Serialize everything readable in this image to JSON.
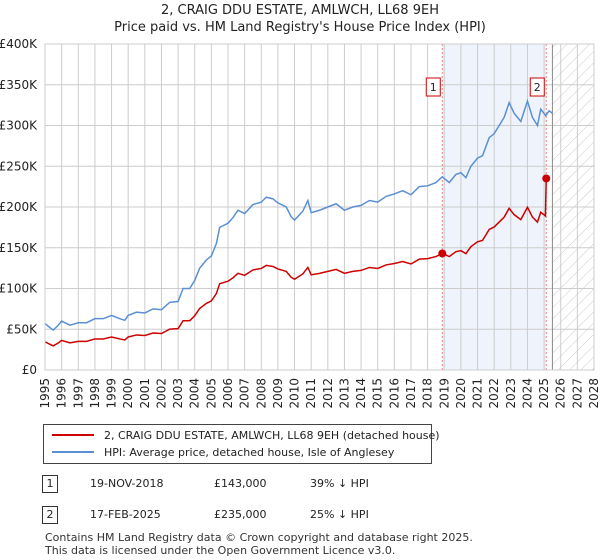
{
  "title": "2, CRAIG DDU ESTATE, AMLWCH, LL68 9EH",
  "subtitle": "Price paid vs. HM Land Registry's House Price Index (HPI)",
  "chart_data": {
    "type": "line",
    "title": "2, CRAIG DDU ESTATE, AMLWCH, LL68 9EH",
    "subtitle": "Price paid vs. HM Land Registry's House Price Index (HPI)",
    "xlim": [
      1995,
      2028
    ],
    "ylim": [
      0,
      400000
    ],
    "x_ticks": [
      "1995",
      "1996",
      "1997",
      "1998",
      "1999",
      "2000",
      "2001",
      "2002",
      "2003",
      "2004",
      "2005",
      "2006",
      "2007",
      "2008",
      "2009",
      "2010",
      "2011",
      "2012",
      "2013",
      "2014",
      "2015",
      "2016",
      "2017",
      "2018",
      "2019",
      "2020",
      "2021",
      "2022",
      "2023",
      "2024",
      "2025",
      "2026",
      "2027",
      "2028"
    ],
    "y_ticks": [
      {
        "v": 0,
        "l": "£0"
      },
      {
        "v": 50000,
        "l": "£50K"
      },
      {
        "v": 100000,
        "l": "£100K"
      },
      {
        "v": 150000,
        "l": "£150K"
      },
      {
        "v": 200000,
        "l": "£200K"
      },
      {
        "v": 250000,
        "l": "£250K"
      },
      {
        "v": 300000,
        "l": "£300K"
      },
      {
        "v": 350000,
        "l": "£350K"
      },
      {
        "v": 400000,
        "l": "£400K"
      }
    ],
    "grid": true,
    "shaded_range": [
      2018.88,
      2025.13
    ],
    "forecast_hatch_from": 2025.5,
    "series": [
      {
        "name": "2, CRAIG DDU ESTATE, AMLWCH, LL68 9EH (detached house)",
        "color": "#cc0000",
        "points": [
          [
            1995,
            34.5
          ],
          [
            1995.3,
            31.5
          ],
          [
            1995.5,
            29.6
          ],
          [
            1995.8,
            33.3
          ],
          [
            1996,
            36.3
          ],
          [
            1996.5,
            33.3
          ],
          [
            1997,
            35.1
          ],
          [
            1997.5,
            35.1
          ],
          [
            1998,
            38.1
          ],
          [
            1998.5,
            38.1
          ],
          [
            1999,
            40.5
          ],
          [
            1999.5,
            38.1
          ],
          [
            1999.8,
            36.9
          ],
          [
            2000,
            40.5
          ],
          [
            2000.5,
            43
          ],
          [
            2001,
            42.4
          ],
          [
            2001.5,
            45.4
          ],
          [
            2002,
            44.8
          ],
          [
            2002.5,
            50.2
          ],
          [
            2003,
            50.8
          ],
          [
            2003.3,
            60.5
          ],
          [
            2003.7,
            60.5
          ],
          [
            2004,
            66.6
          ],
          [
            2004.3,
            75.6
          ],
          [
            2004.7,
            81.7
          ],
          [
            2005,
            84.7
          ],
          [
            2005.3,
            93.8
          ],
          [
            2005.5,
            105.9
          ],
          [
            2006,
            108.9
          ],
          [
            2006.3,
            113.1
          ],
          [
            2006.6,
            118.6
          ],
          [
            2007,
            116.2
          ],
          [
            2007.5,
            122.8
          ],
          [
            2008,
            124.6
          ],
          [
            2008.3,
            128.3
          ],
          [
            2008.7,
            127
          ],
          [
            2009,
            124
          ],
          [
            2009.5,
            121
          ],
          [
            2009.8,
            113.7
          ],
          [
            2010,
            111.3
          ],
          [
            2010.5,
            118
          ],
          [
            2010.8,
            125.8
          ],
          [
            2011,
            116.8
          ],
          [
            2011.5,
            118.6
          ],
          [
            2012,
            121
          ],
          [
            2012.5,
            123.4
          ],
          [
            2013,
            118.6
          ],
          [
            2013.5,
            121
          ],
          [
            2014,
            122.2
          ],
          [
            2014.5,
            125.8
          ],
          [
            2015,
            124.6
          ],
          [
            2015.5,
            128.9
          ],
          [
            2016,
            130.7
          ],
          [
            2016.5,
            133.1
          ],
          [
            2017,
            130.1
          ],
          [
            2017.5,
            136.1
          ],
          [
            2018,
            136.7
          ],
          [
            2018.5,
            139.2
          ],
          [
            2018.88,
            143
          ],
          [
            2019.3,
            139.2
          ],
          [
            2019.7,
            145.2
          ],
          [
            2020,
            146.4
          ],
          [
            2020.3,
            142.8
          ],
          [
            2020.6,
            151.3
          ],
          [
            2021,
            157.3
          ],
          [
            2021.3,
            159.1
          ],
          [
            2021.7,
            172.4
          ],
          [
            2022,
            175.5
          ],
          [
            2022.3,
            181.5
          ],
          [
            2022.6,
            187.6
          ],
          [
            2022.9,
            198.4
          ],
          [
            2023.2,
            190.6
          ],
          [
            2023.6,
            184.5
          ],
          [
            2024,
            199.7
          ],
          [
            2024.3,
            187.6
          ],
          [
            2024.6,
            181.5
          ],
          [
            2024.8,
            193.6
          ],
          [
            2025.08,
            189
          ],
          [
            2025.13,
            235
          ]
        ]
      },
      {
        "name": "HPI: Average price, detached house, Isle of Anglesey",
        "color": "#5b8fd4",
        "points": [
          [
            1995,
            57
          ],
          [
            1995.3,
            52
          ],
          [
            1995.5,
            49
          ],
          [
            1995.8,
            55
          ],
          [
            1996,
            60
          ],
          [
            1996.5,
            55
          ],
          [
            1997,
            58
          ],
          [
            1997.5,
            58
          ],
          [
            1998,
            63
          ],
          [
            1998.5,
            63
          ],
          [
            1999,
            67
          ],
          [
            1999.5,
            63
          ],
          [
            1999.8,
            61
          ],
          [
            2000,
            67
          ],
          [
            2000.5,
            71
          ],
          [
            2001,
            70
          ],
          [
            2001.5,
            75
          ],
          [
            2002,
            74
          ],
          [
            2002.5,
            83
          ],
          [
            2003,
            84
          ],
          [
            2003.3,
            100
          ],
          [
            2003.7,
            100
          ],
          [
            2004,
            110
          ],
          [
            2004.3,
            125
          ],
          [
            2004.7,
            135
          ],
          [
            2005,
            140
          ],
          [
            2005.3,
            155
          ],
          [
            2005.5,
            175
          ],
          [
            2006,
            180
          ],
          [
            2006.3,
            187
          ],
          [
            2006.6,
            196
          ],
          [
            2007,
            192
          ],
          [
            2007.5,
            203
          ],
          [
            2008,
            206
          ],
          [
            2008.3,
            212
          ],
          [
            2008.7,
            210
          ],
          [
            2009,
            205
          ],
          [
            2009.5,
            200
          ],
          [
            2009.8,
            188
          ],
          [
            2010,
            184
          ],
          [
            2010.5,
            195
          ],
          [
            2010.8,
            208
          ],
          [
            2011,
            193
          ],
          [
            2011.5,
            196
          ],
          [
            2012,
            200
          ],
          [
            2012.5,
            204
          ],
          [
            2013,
            196
          ],
          [
            2013.5,
            200
          ],
          [
            2014,
            202
          ],
          [
            2014.5,
            208
          ],
          [
            2015,
            206
          ],
          [
            2015.5,
            213
          ],
          [
            2016,
            216
          ],
          [
            2016.5,
            220
          ],
          [
            2017,
            215
          ],
          [
            2017.5,
            225
          ],
          [
            2018,
            226
          ],
          [
            2018.5,
            230
          ],
          [
            2018.88,
            237
          ],
          [
            2019.3,
            230
          ],
          [
            2019.7,
            240
          ],
          [
            2020,
            242
          ],
          [
            2020.3,
            236
          ],
          [
            2020.6,
            250
          ],
          [
            2021,
            260
          ],
          [
            2021.3,
            263
          ],
          [
            2021.7,
            285
          ],
          [
            2022,
            290
          ],
          [
            2022.3,
            300
          ],
          [
            2022.6,
            310
          ],
          [
            2022.9,
            328
          ],
          [
            2023.2,
            315
          ],
          [
            2023.6,
            305
          ],
          [
            2024,
            330
          ],
          [
            2024.3,
            310
          ],
          [
            2024.6,
            300
          ],
          [
            2024.8,
            320
          ],
          [
            2025.1,
            312
          ],
          [
            2025.3,
            318
          ],
          [
            2025.5,
            315
          ]
        ]
      }
    ],
    "y_units": "thousands GBP",
    "sales": [
      {
        "label": "1",
        "year": 2018.88,
        "value": 143
      },
      {
        "label": "2",
        "year": 2025.13,
        "value": 235
      }
    ]
  },
  "legend": {
    "red": "2, CRAIG DDU ESTATE, AMLWCH, LL68 9EH (detached house)",
    "blue": "HPI: Average price, detached house, Isle of Anglesey"
  },
  "transactions": [
    {
      "num": "1",
      "date": "19-NOV-2018",
      "price": "£143,000",
      "hpi": "39% ↓ HPI"
    },
    {
      "num": "2",
      "date": "17-FEB-2025",
      "price": "£235,000",
      "hpi": "25% ↓ HPI"
    }
  ],
  "footer": {
    "line1": "Contains HM Land Registry data © Crown copyright and database right 2025.",
    "line2": "This data is licensed under the Open Government Licence v3.0."
  }
}
